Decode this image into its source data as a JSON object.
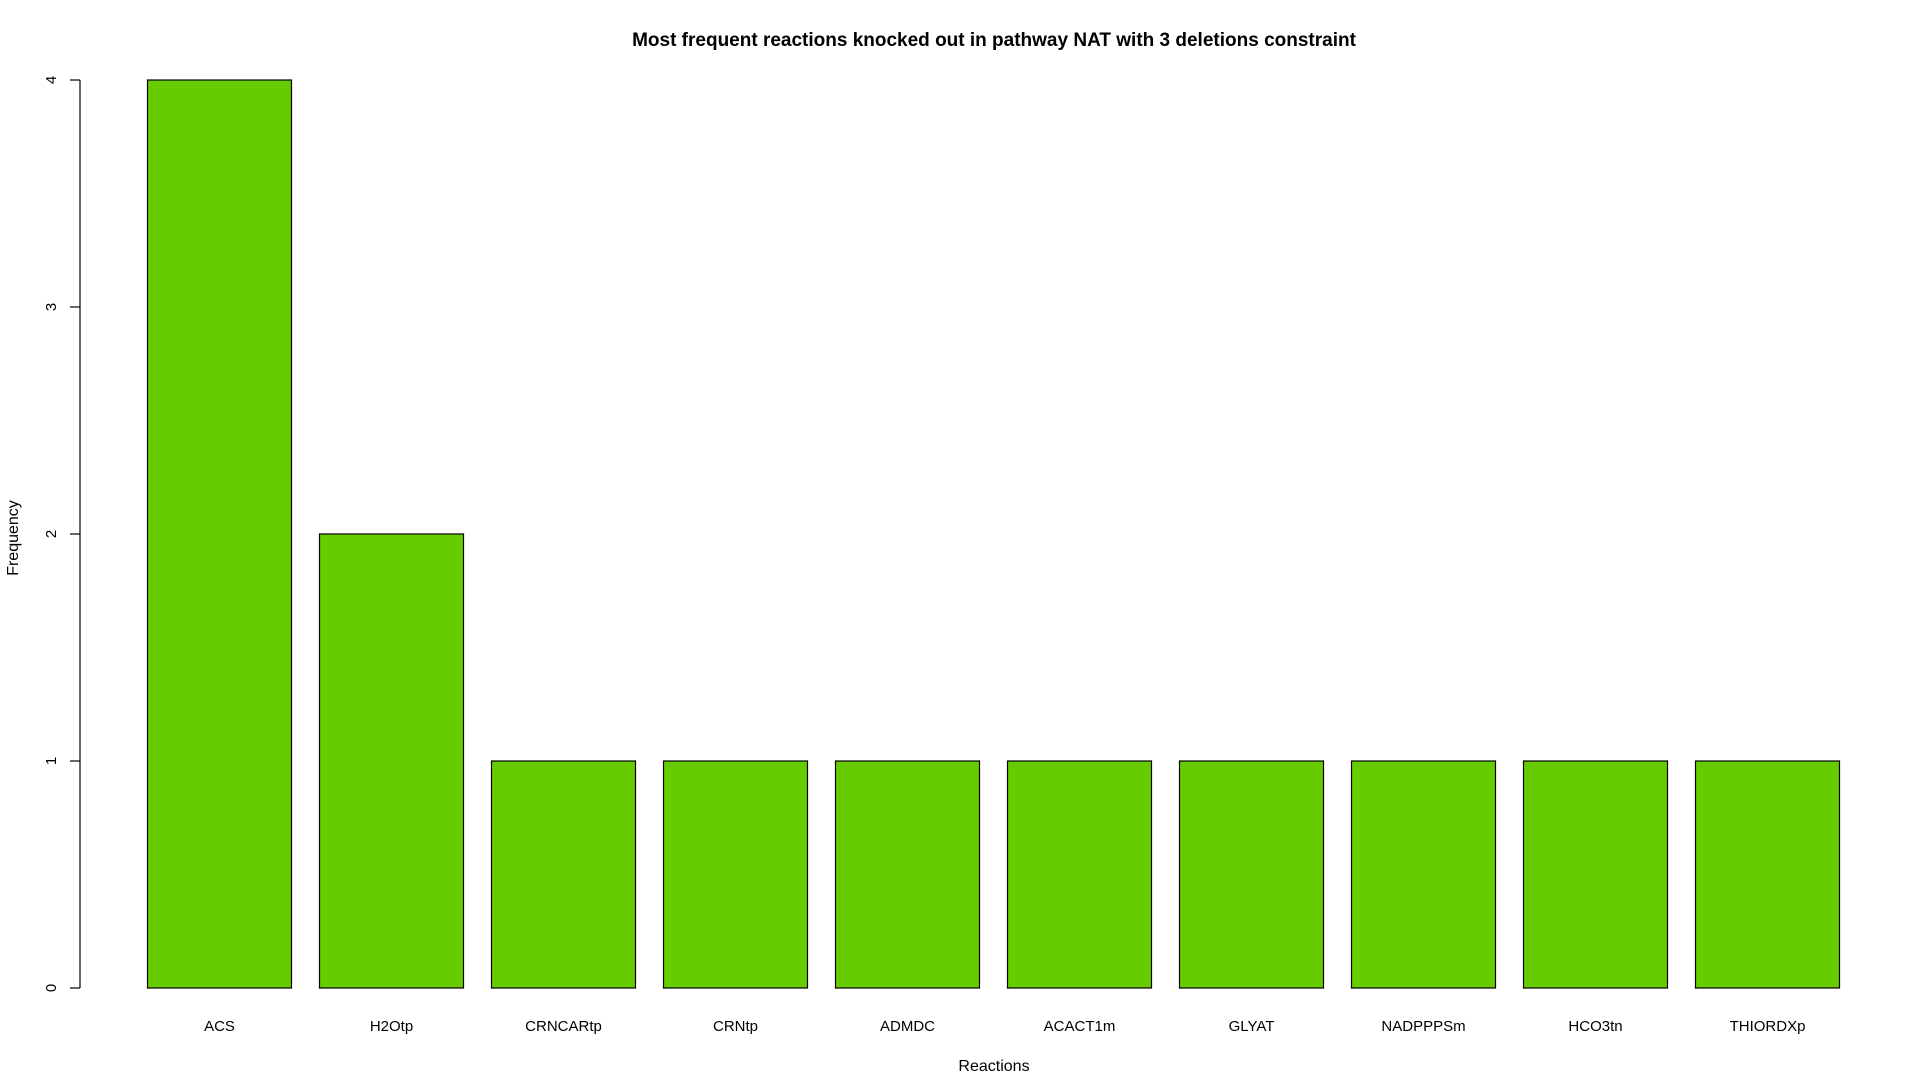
{
  "chart_data": {
    "type": "bar",
    "title": "Most frequent reactions knocked out in pathway NAT with 3 deletions constraint",
    "xlabel": "Reactions",
    "ylabel": "Frequency",
    "categories": [
      "ACS",
      "H2Otp",
      "CRNCARtp",
      "CRNtp",
      "ADMDC",
      "ACACT1m",
      "GLYAT",
      "NADPPPSm",
      "HCO3tn",
      "THIORDXp"
    ],
    "values": [
      4,
      2,
      1,
      1,
      1,
      1,
      1,
      1,
      1,
      1
    ],
    "ylim": [
      0,
      4
    ],
    "yticks": [
      0,
      1,
      2,
      3,
      4
    ],
    "bar_color": "#66CC00",
    "grid": false,
    "legend": "none"
  }
}
